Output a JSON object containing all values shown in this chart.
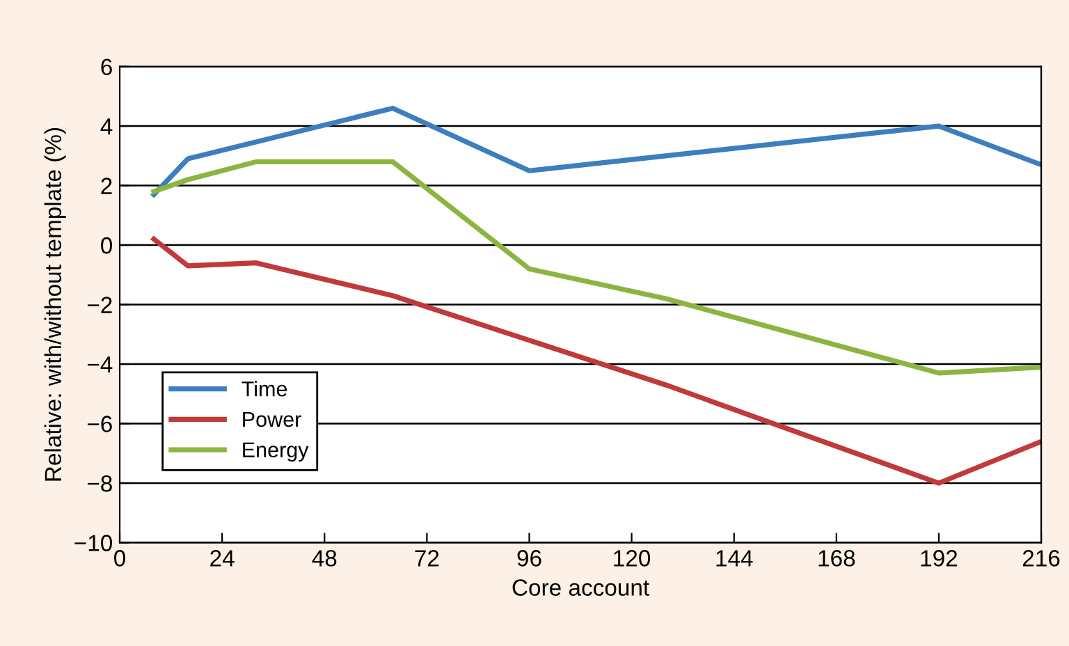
{
  "chart_data": {
    "type": "line",
    "xlabel": "Core account",
    "ylabel": "Relative: with/without template (%)",
    "xlim": [
      0,
      216
    ],
    "xticks": [
      0,
      24,
      48,
      72,
      96,
      120,
      144,
      168,
      192,
      216
    ],
    "ylim": [
      -10,
      6
    ],
    "yticks": [
      -10,
      -8,
      -6,
      -4,
      -2,
      0,
      2,
      4,
      6
    ],
    "grid": "y",
    "legend": "bottom left",
    "marker": "none",
    "line_style": "solid",
    "series": [
      {
        "name": "Time",
        "color": "#3d7ebf",
        "x": [
          8,
          16,
          64,
          96,
          128,
          192,
          216
        ],
        "values": [
          1.7,
          2.9,
          4.6,
          2.5,
          3.0,
          4.0,
          2.7
        ]
      },
      {
        "name": "Power",
        "color": "#c0393b",
        "x": [
          8,
          16,
          32,
          64,
          96,
          128,
          192,
          216
        ],
        "values": [
          0.2,
          -0.7,
          -0.6,
          -1.7,
          -3.2,
          -4.7,
          -8.0,
          -6.6
        ]
      },
      {
        "name": "Energy",
        "color": "#8db442",
        "x": [
          8,
          16,
          32,
          64,
          96,
          128,
          192,
          216
        ],
        "values": [
          1.8,
          2.2,
          2.8,
          2.8,
          -0.8,
          -1.8,
          -4.3,
          -4.1
        ]
      }
    ]
  }
}
